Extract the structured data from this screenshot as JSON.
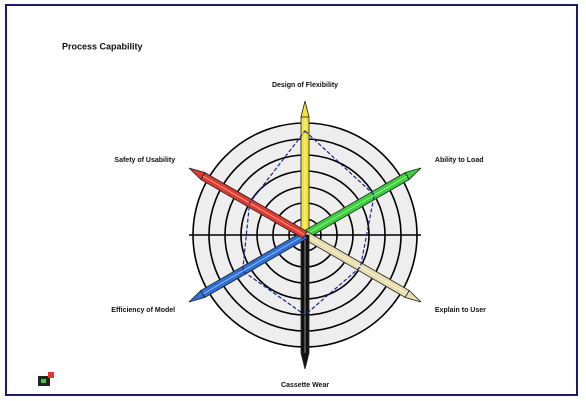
{
  "chart_data": {
    "type": "radar",
    "title": "Process Capability",
    "categories": [
      "Design of Flexibility",
      "Ability to Load",
      "Explain to User",
      "Cassette Wear",
      "Efficiency of Model",
      "Safety of Usability"
    ],
    "values": [
      6.5,
      5,
      4,
      5,
      4.5,
      4
    ],
    "color": "#1a2a8a",
    "axis_colors": [
      "#f2e23a",
      "#3ccf3c",
      "#e8dfb0",
      "#111111",
      "#2d6fd6",
      "#e03a2e"
    ],
    "rlim": [
      0,
      7
    ],
    "rticks": [
      1,
      2,
      3,
      4,
      5,
      6,
      7
    ],
    "grid": true
  }
}
